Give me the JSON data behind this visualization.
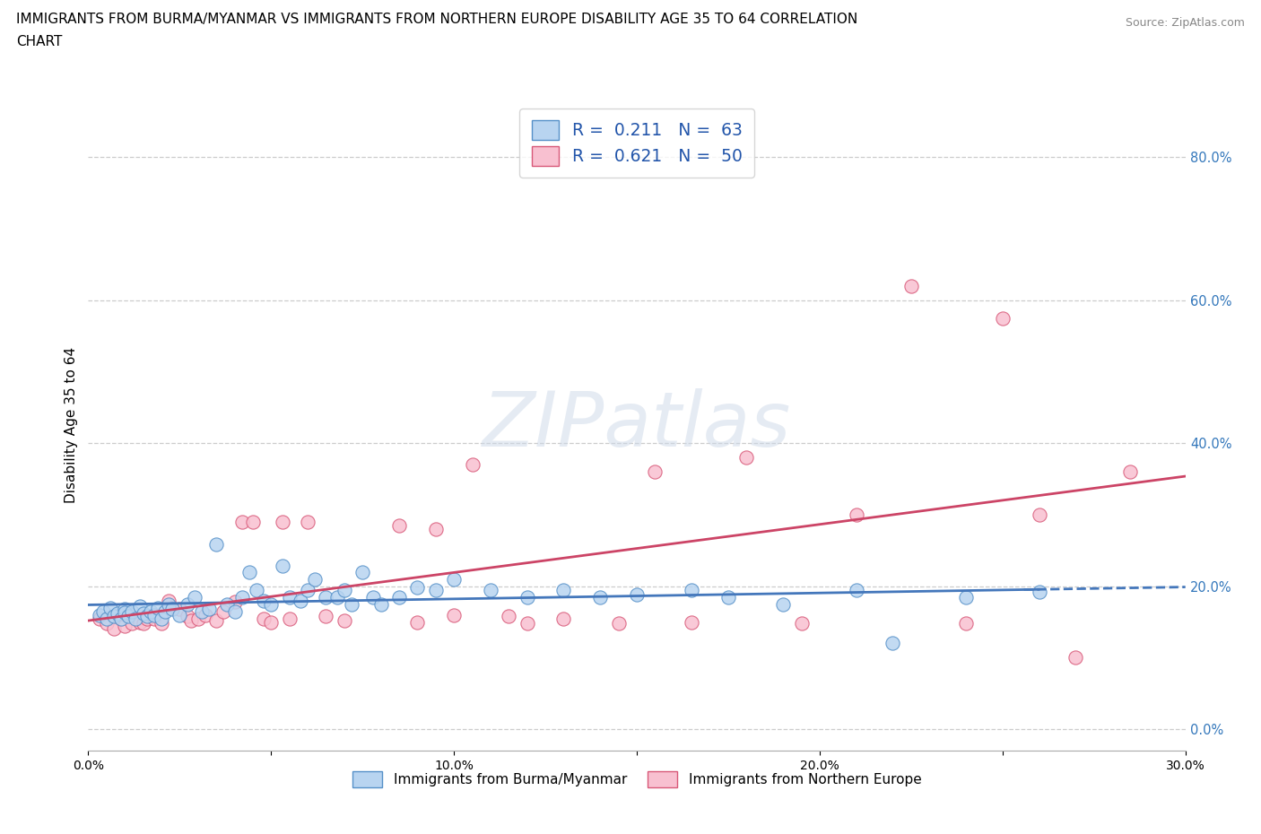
{
  "title_line1": "IMMIGRANTS FROM BURMA/MYANMAR VS IMMIGRANTS FROM NORTHERN EUROPE DISABILITY AGE 35 TO 64 CORRELATION",
  "title_line2": "CHART",
  "source": "Source: ZipAtlas.com",
  "ylabel": "Disability Age 35 to 64",
  "xlim": [
    0.0,
    0.3
  ],
  "ylim": [
    -0.03,
    0.88
  ],
  "xtick_positions": [
    0.0,
    0.05,
    0.1,
    0.15,
    0.2,
    0.25,
    0.3
  ],
  "xtick_labels": [
    "0.0%",
    "",
    "10.0%",
    "",
    "20.0%",
    "",
    "30.0%"
  ],
  "ytick_positions": [
    0.0,
    0.2,
    0.4,
    0.6,
    0.8
  ],
  "ytick_labels": [
    "0.0%",
    "20.0%",
    "40.0%",
    "60.0%",
    "80.0%"
  ],
  "blue_face": "#b8d4f0",
  "blue_edge": "#5590c8",
  "pink_face": "#f8c0d0",
  "pink_edge": "#d85878",
  "blue_line": "#4477bb",
  "pink_line": "#cc4466",
  "legend_text_color": "#2255aa",
  "right_axis_color": "#3377bb",
  "blue_label": "Immigrants from Burma/Myanmar",
  "pink_label": "Immigrants from Northern Europe",
  "watermark": "ZIPatlas",
  "bg_color": "#ffffff",
  "grid_color": "#cccccc",
  "blue_x": [
    0.003,
    0.004,
    0.005,
    0.006,
    0.007,
    0.008,
    0.009,
    0.01,
    0.01,
    0.011,
    0.012,
    0.013,
    0.014,
    0.015,
    0.016,
    0.017,
    0.018,
    0.019,
    0.02,
    0.021,
    0.022,
    0.023,
    0.025,
    0.027,
    0.029,
    0.031,
    0.033,
    0.035,
    0.038,
    0.04,
    0.042,
    0.044,
    0.046,
    0.048,
    0.05,
    0.053,
    0.055,
    0.058,
    0.06,
    0.062,
    0.065,
    0.068,
    0.07,
    0.072,
    0.075,
    0.078,
    0.08,
    0.085,
    0.09,
    0.095,
    0.1,
    0.11,
    0.12,
    0.13,
    0.14,
    0.15,
    0.165,
    0.175,
    0.19,
    0.21,
    0.22,
    0.24,
    0.26
  ],
  "blue_y": [
    0.16,
    0.165,
    0.155,
    0.17,
    0.158,
    0.162,
    0.155,
    0.168,
    0.163,
    0.158,
    0.165,
    0.155,
    0.172,
    0.162,
    0.158,
    0.165,
    0.16,
    0.17,
    0.155,
    0.165,
    0.175,
    0.168,
    0.16,
    0.175,
    0.185,
    0.165,
    0.168,
    0.258,
    0.175,
    0.165,
    0.185,
    0.22,
    0.195,
    0.18,
    0.175,
    0.228,
    0.185,
    0.18,
    0.195,
    0.21,
    0.185,
    0.185,
    0.195,
    0.175,
    0.22,
    0.185,
    0.175,
    0.185,
    0.198,
    0.195,
    0.21,
    0.195,
    0.185,
    0.195,
    0.185,
    0.188,
    0.195,
    0.185,
    0.175,
    0.195,
    0.12,
    0.185,
    0.192
  ],
  "pink_x": [
    0.003,
    0.005,
    0.007,
    0.009,
    0.01,
    0.012,
    0.014,
    0.015,
    0.016,
    0.018,
    0.02,
    0.022,
    0.023,
    0.025,
    0.027,
    0.028,
    0.03,
    0.032,
    0.035,
    0.037,
    0.04,
    0.042,
    0.045,
    0.048,
    0.05,
    0.053,
    0.055,
    0.06,
    0.065,
    0.07,
    0.085,
    0.09,
    0.095,
    0.1,
    0.105,
    0.115,
    0.12,
    0.13,
    0.145,
    0.155,
    0.165,
    0.18,
    0.195,
    0.21,
    0.225,
    0.24,
    0.25,
    0.26,
    0.27,
    0.285
  ],
  "pink_y": [
    0.155,
    0.148,
    0.14,
    0.155,
    0.145,
    0.148,
    0.15,
    0.148,
    0.155,
    0.155,
    0.148,
    0.18,
    0.17,
    0.168,
    0.158,
    0.152,
    0.155,
    0.16,
    0.152,
    0.165,
    0.178,
    0.29,
    0.29,
    0.155,
    0.15,
    0.29,
    0.155,
    0.29,
    0.158,
    0.152,
    0.285,
    0.15,
    0.28,
    0.16,
    0.37,
    0.158,
    0.148,
    0.155,
    0.148,
    0.36,
    0.15,
    0.38,
    0.148,
    0.3,
    0.62,
    0.148,
    0.575,
    0.3,
    0.1,
    0.36
  ]
}
